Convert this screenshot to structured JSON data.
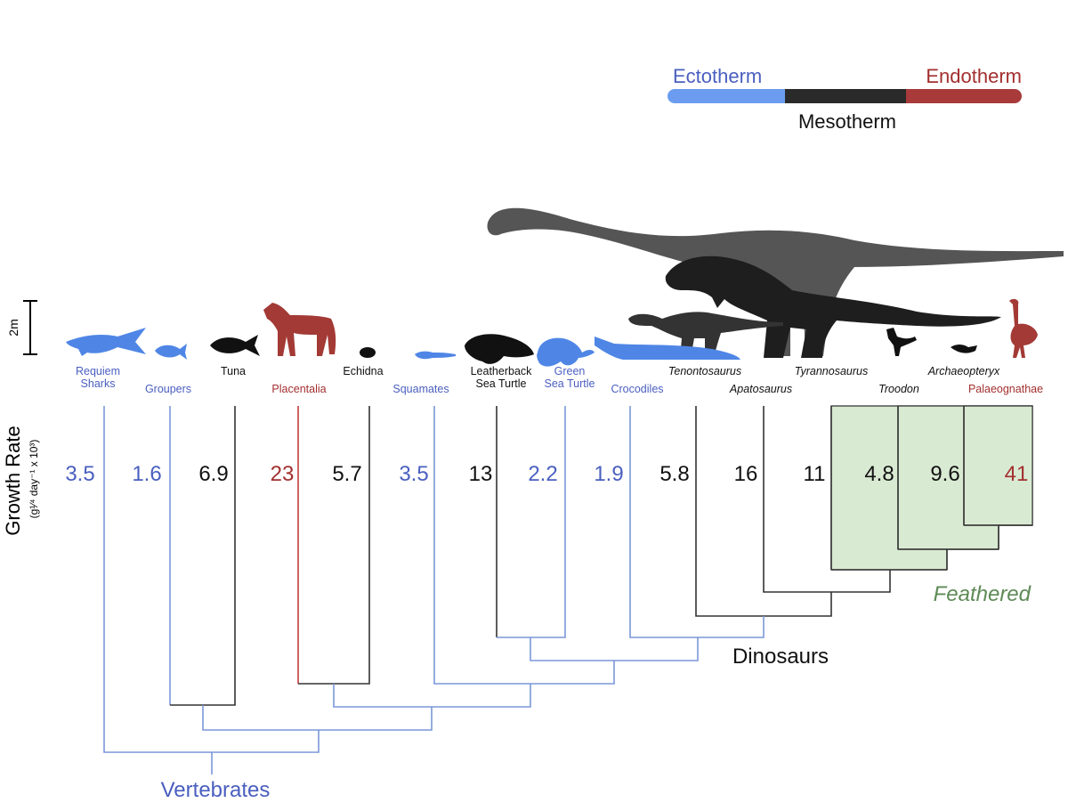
{
  "legend": {
    "ectotherm": "Ectotherm",
    "endotherm": "Endotherm",
    "mesotherm": "Mesotherm"
  },
  "scale_bar_label": "2m",
  "yaxis": {
    "title": "Growth Rate",
    "units": "(g¹⁄⁴ day⁻¹ x 10³)"
  },
  "colors": {
    "ectotherm": "#4a5fbf",
    "endotherm": "#a32f2f",
    "mesotherm": "#111111",
    "ecto_bar": "#6b9cf0",
    "meso_bar": "#2a2a2a",
    "endo_bar": "#a83a3a",
    "feathered_fill": "#d9ead3",
    "feathered_text": "#5e8a56",
    "tree_blue": "#7b97d9",
    "tree_red": "#c33d3d",
    "tree_black": "#333333"
  },
  "taxa": [
    {
      "name": "Requiem\nSharks",
      "rate": "3.5",
      "group": "ectotherm"
    },
    {
      "name": "Groupers",
      "rate": "1.6",
      "group": "ectotherm"
    },
    {
      "name": "Tuna",
      "rate": "6.9",
      "group": "mesotherm"
    },
    {
      "name": "Placentalia",
      "rate": "23",
      "group": "endotherm"
    },
    {
      "name": "Echidna",
      "rate": "5.7",
      "group": "mesotherm"
    },
    {
      "name": "Squamates",
      "rate": "3.5",
      "group": "ectotherm"
    },
    {
      "name": "Leatherback\nSea Turtle",
      "rate": "13",
      "group": "mesotherm"
    },
    {
      "name": "Green\nSea Turtle",
      "rate": "2.2",
      "group": "ectotherm"
    },
    {
      "name": "Crocodiles",
      "rate": "1.9",
      "group": "ectotherm"
    },
    {
      "name": "Tenontosaurus",
      "rate": "5.8",
      "group": "mesotherm"
    },
    {
      "name": "Apatosaurus",
      "rate": "16",
      "group": "mesotherm"
    },
    {
      "name": "Tyrannosaurus",
      "rate": "11",
      "group": "mesotherm"
    },
    {
      "name": "Troodon",
      "rate": "4.8",
      "group": "mesotherm"
    },
    {
      "name": "Archaeopteryx",
      "rate": "9.6",
      "group": "mesotherm"
    },
    {
      "name": "Palaeognathae",
      "rate": "41",
      "group": "endotherm"
    }
  ],
  "clade_labels": {
    "feathered": "Feathered",
    "dinosaurs": "Dinosaurs",
    "vertebrates": "Vertebrates"
  },
  "silhouettes": [
    {
      "icon": "shark-silhouette-icon",
      "color": "#4f86e6"
    },
    {
      "icon": "fish-silhouette-icon",
      "color": "#4f86e6"
    },
    {
      "icon": "tuna-silhouette-icon",
      "color": "#111111"
    },
    {
      "icon": "horse-silhouette-icon",
      "color": "#a33a35"
    },
    {
      "icon": "echidna-silhouette-icon",
      "color": "#111111"
    },
    {
      "icon": "lizard-silhouette-icon",
      "color": "#4f86e6"
    },
    {
      "icon": "leatherback-turtle-silhouette-icon",
      "color": "#111111"
    },
    {
      "icon": "green-turtle-silhouette-icon",
      "color": "#4f86e6"
    },
    {
      "icon": "crocodile-silhouette-icon",
      "color": "#4f86e6"
    },
    {
      "icon": "tenontosaurus-silhouette-icon",
      "color": "#333333"
    },
    {
      "icon": "apatosaurus-silhouette-icon",
      "color": "#555555"
    },
    {
      "icon": "tyrannosaurus-silhouette-icon",
      "color": "#1e1e1e"
    },
    {
      "icon": "troodon-silhouette-icon",
      "color": "#111111"
    },
    {
      "icon": "archaeopteryx-silhouette-icon",
      "color": "#111111"
    },
    {
      "icon": "ostrich-silhouette-icon",
      "color": "#a33a35"
    }
  ]
}
